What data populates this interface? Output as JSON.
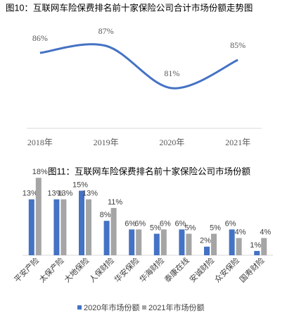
{
  "chart_data": [
    {
      "type": "line",
      "title": "图10：互联网车险保费排名前十家保险公司合计市场份额走势图",
      "categories": [
        "2018年",
        "2019年",
        "2020年",
        "2021年"
      ],
      "values": [
        86,
        87,
        81,
        85
      ],
      "value_labels": [
        "86%",
        "87%",
        "81%",
        "85%"
      ],
      "color": "#4472c4",
      "ylim": [
        78,
        90
      ],
      "smooth": true
    },
    {
      "type": "bar",
      "title": "图11：互联网车险保费排名前十家保险公司市场份额",
      "categories": [
        "平安产险",
        "太保产险",
        "大地保险",
        "人保财险",
        "华安保险",
        "华海财险",
        "泰康在线",
        "安诚财险",
        "众安保险",
        "国寿财险"
      ],
      "series": [
        {
          "name": "2020年市场份额",
          "color": "#4472c4",
          "values": [
            13,
            13,
            15,
            8,
            6,
            5,
            6,
            2,
            6,
            1
          ],
          "value_labels": [
            "13%",
            "13%",
            "15%",
            "8%",
            "6%",
            "5%",
            "6%",
            "2%",
            "6%",
            "1%"
          ]
        },
        {
          "name": "2021年市场份额",
          "color": "#a5a5a5",
          "values": [
            18,
            13,
            13,
            11,
            6,
            6,
            5,
            5,
            4,
            4
          ],
          "value_labels": [
            "18%",
            "13%",
            "13%",
            "11%",
            "6%",
            "6%",
            "5%",
            "5%",
            "4%",
            "4%"
          ]
        }
      ],
      "ylim": [
        0,
        20
      ],
      "legend": "bottom"
    }
  ]
}
